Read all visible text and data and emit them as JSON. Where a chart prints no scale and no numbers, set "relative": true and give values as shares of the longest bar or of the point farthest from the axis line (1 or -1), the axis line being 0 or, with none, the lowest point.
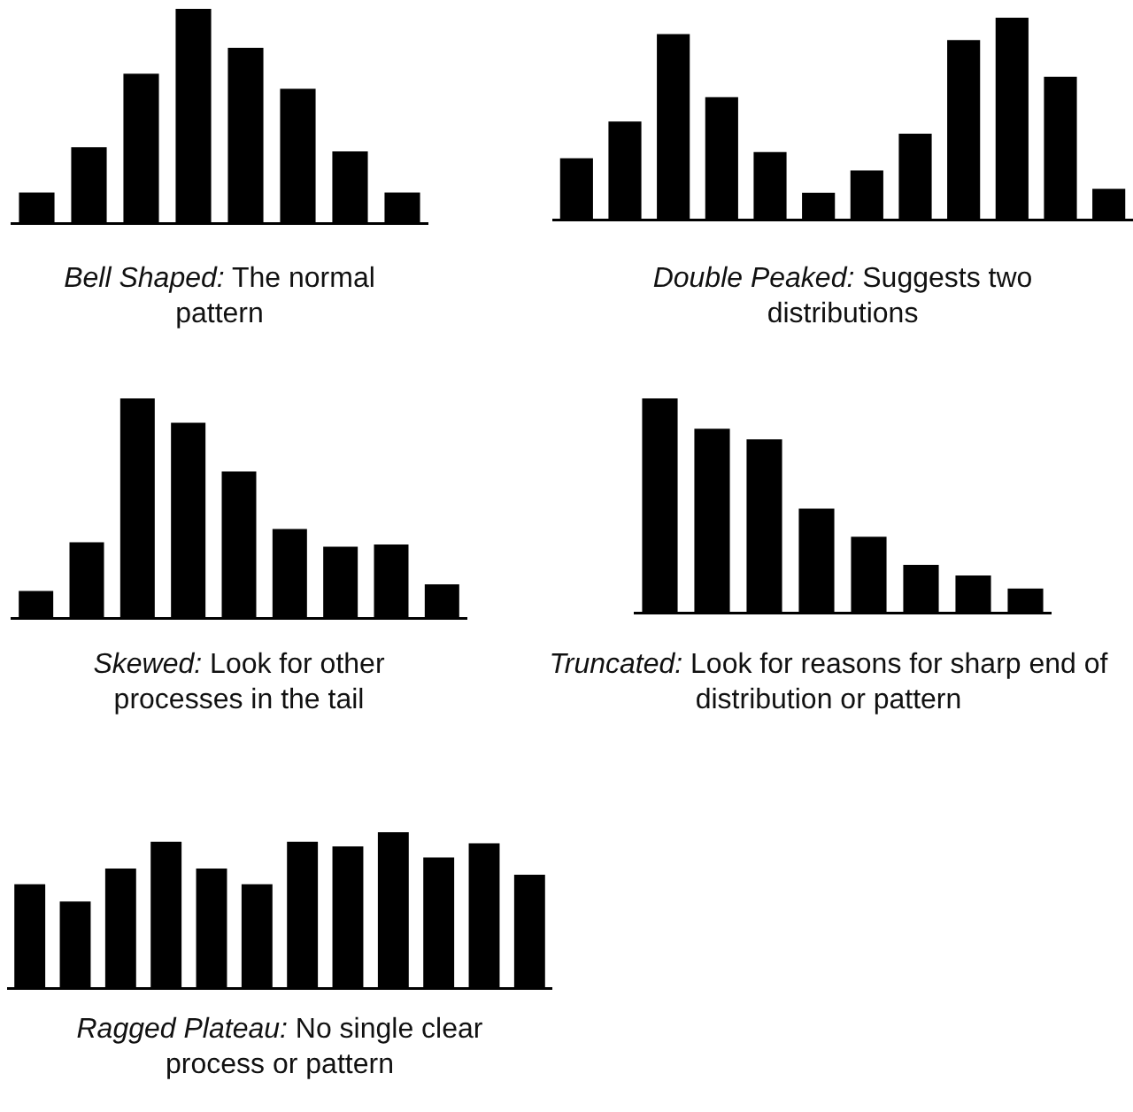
{
  "chart_data": [
    {
      "type": "bar",
      "title": "Bell Shaped:",
      "subtitle": "The normal pattern",
      "relative": true,
      "color": "#000000",
      "categories": [
        null,
        null,
        null,
        null,
        null,
        null,
        null,
        null
      ],
      "values": [
        0.15,
        0.36,
        0.7,
        1,
        0.82,
        0.63,
        0.34,
        0.15
      ]
    },
    {
      "type": "bar",
      "title": "Double Peaked:",
      "subtitle": "Suggests two distributions",
      "relative": true,
      "color": "#000000",
      "categories": [
        null,
        null,
        null,
        null,
        null,
        null,
        null,
        null,
        null,
        null,
        null,
        null
      ],
      "values": [
        0.31,
        0.49,
        0.92,
        0.61,
        0.34,
        0.14,
        0.25,
        0.43,
        0.89,
        1,
        0.71,
        0.16
      ]
    },
    {
      "type": "bar",
      "title": "Skewed:",
      "subtitle": "Look for other processes in the tail",
      "relative": true,
      "color": "#000000",
      "categories": [
        null,
        null,
        null,
        null,
        null,
        null,
        null,
        null,
        null
      ],
      "values": [
        0.13,
        0.35,
        1,
        0.89,
        0.67,
        0.41,
        0.33,
        0.34,
        0.16
      ]
    },
    {
      "type": "bar",
      "title": "Truncated:",
      "subtitle": "Look for reasons for sharp end of distribution or pattern",
      "relative": true,
      "color": "#000000",
      "categories": [
        null,
        null,
        null,
        null,
        null,
        null,
        null,
        null
      ],
      "values": [
        1,
        0.86,
        0.81,
        0.49,
        0.36,
        0.23,
        0.18,
        0.12
      ]
    },
    {
      "type": "bar",
      "title": "Ragged Plateau:",
      "subtitle": "No single clear process or pattern",
      "relative": true,
      "color": "#000000",
      "categories": [
        null,
        null,
        null,
        null,
        null,
        null,
        null,
        null,
        null,
        null,
        null,
        null
      ],
      "values": [
        0.67,
        0.56,
        0.77,
        0.94,
        0.77,
        0.67,
        0.94,
        0.91,
        1,
        0.84,
        0.93,
        0.73
      ]
    }
  ]
}
